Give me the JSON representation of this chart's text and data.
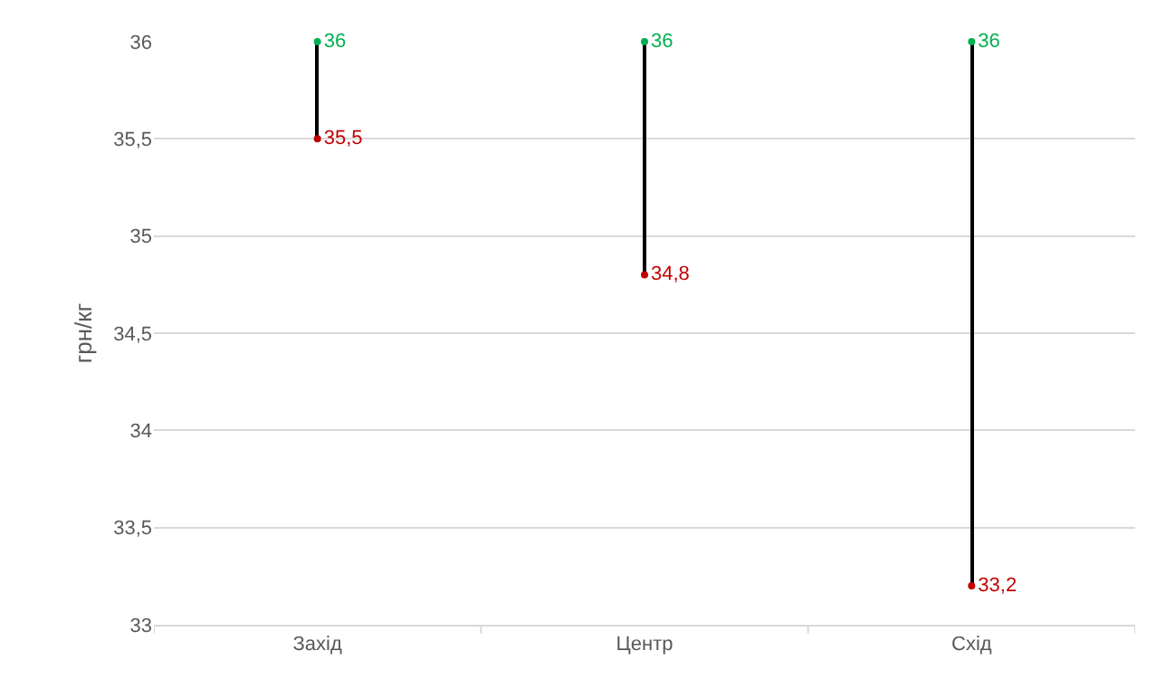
{
  "chart_data": {
    "type": "bar",
    "ylabel": "грн/кг",
    "categories": [
      "Захід",
      "Центр",
      "Схід"
    ],
    "series": [
      {
        "color": "#000000",
        "base": [
          35.5,
          34.8,
          33.2
        ],
        "values": [
          0.5,
          1.2,
          2.8
        ]
      },
      {
        "type": "scatter",
        "color": "#00b050",
        "values": [
          36,
          36,
          36
        ],
        "value_labels": [
          "36",
          "36",
          "36"
        ]
      },
      {
        "type": "scatter",
        "color": "#c00000",
        "values": [
          35.5,
          34.8,
          33.2
        ],
        "value_labels": [
          "35,5",
          "34,8",
          "33,2"
        ]
      }
    ],
    "ylim": [
      33,
      36
    ],
    "yticks": [
      33,
      {
        "value": 33.5,
        "label": "33,5"
      },
      34,
      {
        "value": 34.5,
        "label": "34,5"
      },
      35,
      {
        "value": 35.5,
        "label": "35,5"
      },
      36
    ],
    "grid": "y"
  }
}
